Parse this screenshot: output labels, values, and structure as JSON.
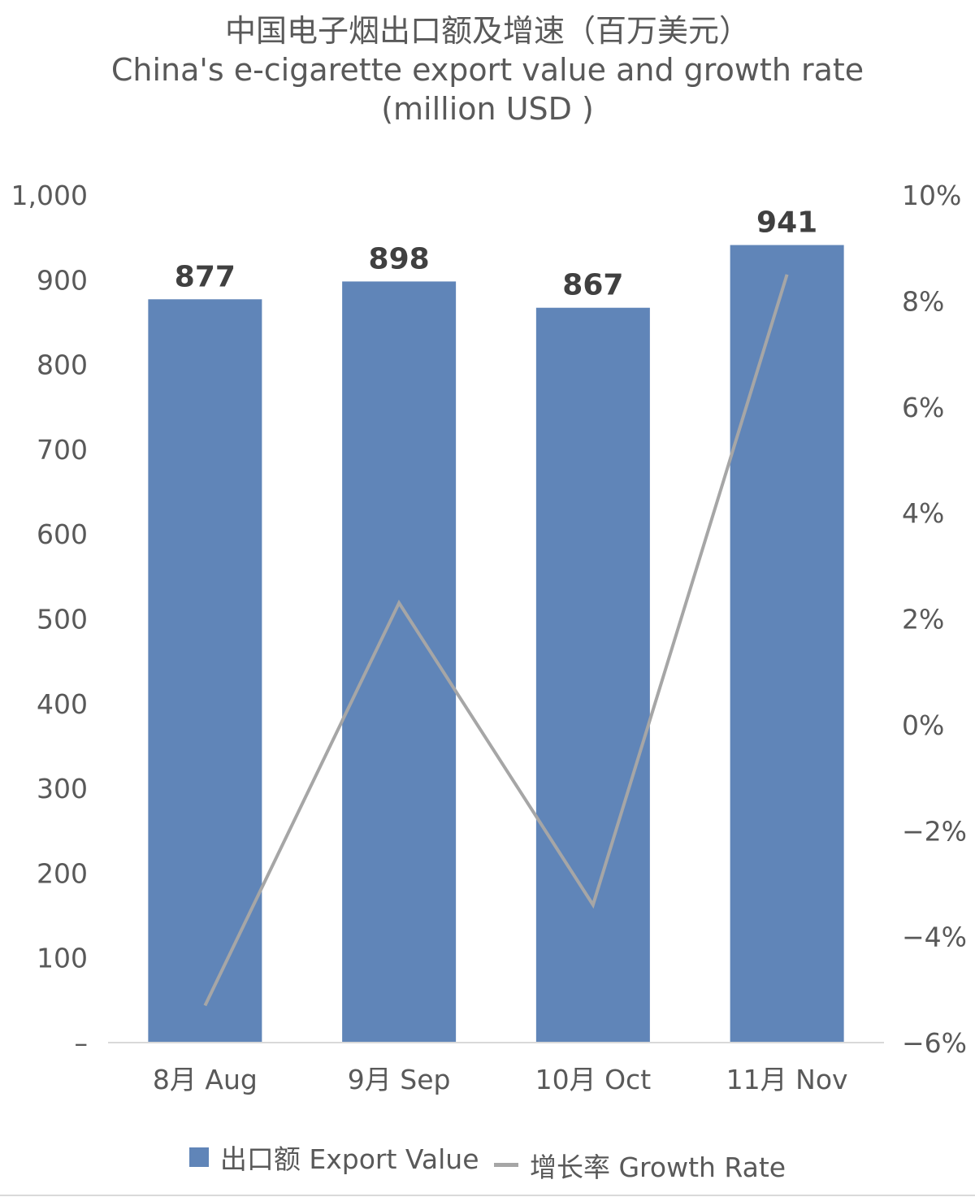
{
  "title_zh": "中国电子烟出口额及增速（百万美元）",
  "title_en": "China's e-cigarette export value and growth rate (million USD )",
  "chart_data": {
    "type": "bar",
    "categories": [
      "8月 Aug",
      "9月 Sep",
      "10月 Oct",
      "11月 Nov"
    ],
    "series": [
      {
        "name": "出口额 Export Value",
        "type": "bar",
        "axis": "left",
        "color": "#6085b8",
        "values": [
          877,
          898,
          867,
          941
        ],
        "data_labels": [
          "877",
          "898",
          "867",
          "941"
        ]
      },
      {
        "name": "增长率 Growth Rate",
        "type": "line",
        "axis": "right",
        "color": "#a6a6a6",
        "values": [
          -5.3,
          2.3,
          -3.4,
          8.5
        ]
      }
    ],
    "y_left": {
      "min": 0,
      "max": 1000,
      "ticks": [
        0,
        100,
        200,
        300,
        400,
        500,
        600,
        700,
        800,
        900,
        1000
      ],
      "tick_labels": [
        "–",
        "100",
        "200",
        "300",
        "400",
        "500",
        "600",
        "700",
        "800",
        "900",
        "1,000"
      ]
    },
    "y_right": {
      "min": -6,
      "max": 10,
      "ticks": [
        -6,
        -4,
        -2,
        0,
        2,
        4,
        6,
        8,
        10
      ],
      "tick_labels": [
        "−6%",
        "−4%",
        "−2%",
        "0%",
        "2%",
        "4%",
        "6%",
        "8%",
        "10%"
      ]
    },
    "grid": false,
    "legend_position": "bottom"
  }
}
